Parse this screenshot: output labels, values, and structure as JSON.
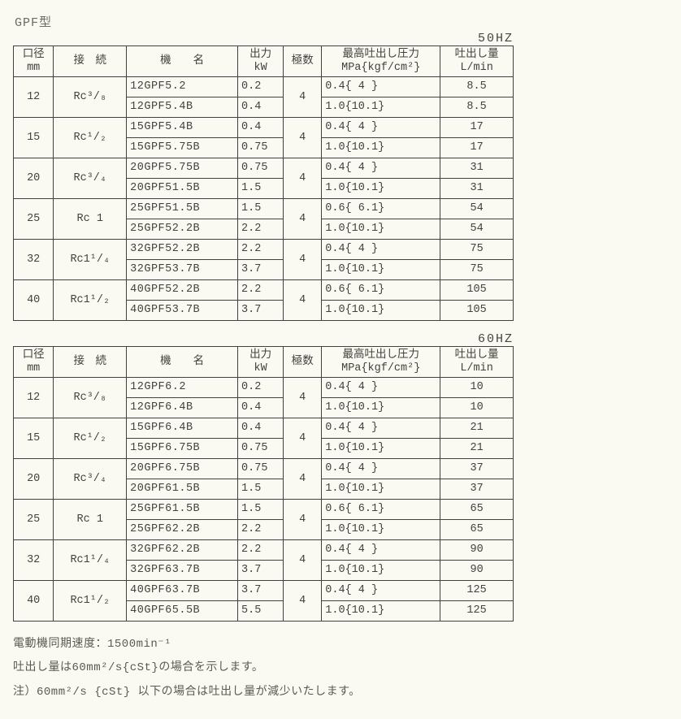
{
  "title": "GPF型",
  "headers": {
    "dia_top": "口径",
    "dia_bot": "mm",
    "conn": "接　続",
    "model": "機　　名",
    "kw_top": "出力",
    "kw_bot": "kW",
    "poles": "極数",
    "press_top": "最高吐出し圧力",
    "press_bot": "MPa{kgf/cm²}",
    "flow_top": "吐出し量",
    "flow_bot": "L/min"
  },
  "tables": [
    {
      "hz": "50HZ",
      "groups": [
        {
          "dia": "12",
          "conn": "Rc³/₈",
          "poles": "4",
          "rows": [
            {
              "model": "12GPF5.2",
              "kw": "0.2",
              "press": "0.4{ 4  }",
              "flow": "8.5"
            },
            {
              "model": "12GPF5.4B",
              "kw": "0.4",
              "press": "1.0{10.1}",
              "flow": "8.5"
            }
          ]
        },
        {
          "dia": "15",
          "conn": "Rc¹/₂",
          "poles": "4",
          "rows": [
            {
              "model": "15GPF5.4B",
              "kw": "0.4",
              "press": "0.4{ 4  }",
              "flow": "17"
            },
            {
              "model": "15GPF5.75B",
              "kw": "0.75",
              "press": "1.0{10.1}",
              "flow": "17"
            }
          ]
        },
        {
          "dia": "20",
          "conn": "Rc³/₄",
          "poles": "4",
          "rows": [
            {
              "model": "20GPF5.75B",
              "kw": "0.75",
              "press": "0.4{ 4  }",
              "flow": "31"
            },
            {
              "model": "20GPF51.5B",
              "kw": "1.5",
              "press": "1.0{10.1}",
              "flow": "31"
            }
          ]
        },
        {
          "dia": "25",
          "conn": "Rc 1",
          "poles": "4",
          "rows": [
            {
              "model": "25GPF51.5B",
              "kw": "1.5",
              "press": "0.6{ 6.1}",
              "flow": "54"
            },
            {
              "model": "25GPF52.2B",
              "kw": "2.2",
              "press": "1.0{10.1}",
              "flow": "54"
            }
          ]
        },
        {
          "dia": "32",
          "conn": "Rc1¹/₄",
          "poles": "4",
          "rows": [
            {
              "model": "32GPF52.2B",
              "kw": "2.2",
              "press": "0.4{ 4  }",
              "flow": "75"
            },
            {
              "model": "32GPF53.7B",
              "kw": "3.7",
              "press": "1.0{10.1}",
              "flow": "75"
            }
          ]
        },
        {
          "dia": "40",
          "conn": "Rc1¹/₂",
          "poles": "4",
          "rows": [
            {
              "model": "40GPF52.2B",
              "kw": "2.2",
              "press": "0.6{ 6.1}",
              "flow": "105"
            },
            {
              "model": "40GPF53.7B",
              "kw": "3.7",
              "press": "1.0{10.1}",
              "flow": "105"
            }
          ]
        }
      ]
    },
    {
      "hz": "60HZ",
      "groups": [
        {
          "dia": "12",
          "conn": "Rc³/₈",
          "poles": "4",
          "rows": [
            {
              "model": "12GPF6.2",
              "kw": "0.2",
              "press": "0.4{ 4  }",
              "flow": "10"
            },
            {
              "model": "12GPF6.4B",
              "kw": "0.4",
              "press": "1.0{10.1}",
              "flow": "10"
            }
          ]
        },
        {
          "dia": "15",
          "conn": "Rc¹/₂",
          "poles": "4",
          "rows": [
            {
              "model": "15GPF6.4B",
              "kw": "0.4",
              "press": "0.4{ 4  }",
              "flow": "21"
            },
            {
              "model": "15GPF6.75B",
              "kw": "0.75",
              "press": "1.0{10.1}",
              "flow": "21"
            }
          ]
        },
        {
          "dia": "20",
          "conn": "Rc³/₄",
          "poles": "4",
          "rows": [
            {
              "model": "20GPF6.75B",
              "kw": "0.75",
              "press": "0.4{ 4  }",
              "flow": "37"
            },
            {
              "model": "20GPF61.5B",
              "kw": "1.5",
              "press": "1.0{10.1}",
              "flow": "37"
            }
          ]
        },
        {
          "dia": "25",
          "conn": "Rc 1",
          "poles": "4",
          "rows": [
            {
              "model": "25GPF61.5B",
              "kw": "1.5",
              "press": "0.6{ 6.1}",
              "flow": "65"
            },
            {
              "model": "25GPF62.2B",
              "kw": "2.2",
              "press": "1.0{10.1}",
              "flow": "65"
            }
          ]
        },
        {
          "dia": "32",
          "conn": "Rc1¹/₄",
          "poles": "4",
          "rows": [
            {
              "model": "32GPF62.2B",
              "kw": "2.2",
              "press": "0.4{ 4  }",
              "flow": "90"
            },
            {
              "model": "32GPF63.7B",
              "kw": "3.7",
              "press": "1.0{10.1}",
              "flow": "90"
            }
          ]
        },
        {
          "dia": "40",
          "conn": "Rc1¹/₂",
          "poles": "4",
          "rows": [
            {
              "model": "40GPF63.7B",
              "kw": "3.7",
              "press": "0.4{ 4  }",
              "flow": "125"
            },
            {
              "model": "40GPF65.5B",
              "kw": "5.5",
              "press": "1.0{10.1}",
              "flow": "125"
            }
          ]
        }
      ]
    }
  ],
  "notes": [
    "電動機同期速度：1500min⁻¹",
    "吐出し量は60mm²/s{cSt}の場合を示します。",
    "注）60mm²/s {cSt} 以下の場合は吐出し量が減少いたします。"
  ]
}
